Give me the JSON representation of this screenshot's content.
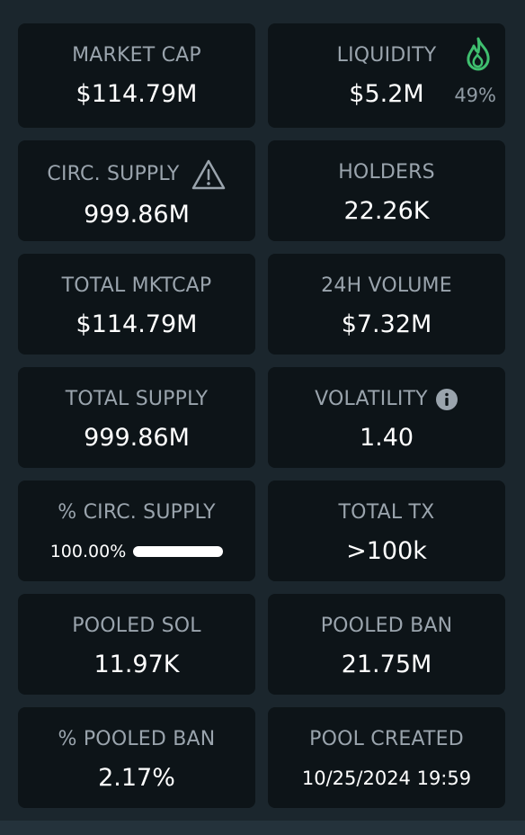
{
  "cards": [
    {
      "label": "MARKET CAP",
      "value": "$114.79M"
    },
    {
      "label": "LIQUIDITY",
      "value": "$5.2M",
      "note": "49%"
    },
    {
      "label": "CIRC. SUPPLY",
      "value": "999.86M"
    },
    {
      "label": "HOLDERS",
      "value": "22.26K"
    },
    {
      "label": "TOTAL MKTCAP",
      "value": "$114.79M"
    },
    {
      "label": "24H VOLUME",
      "value": "$7.32M"
    },
    {
      "label": "TOTAL SUPPLY",
      "value": "999.86M"
    },
    {
      "label": "VOLATILITY",
      "value": "1.40"
    },
    {
      "label": "% CIRC. SUPPLY",
      "value": "100.00%"
    },
    {
      "label": "TOTAL TX",
      "value": ">100k"
    },
    {
      "label": "POOLED SOL",
      "value": "11.97K"
    },
    {
      "label": "POOLED BAN",
      "value": "21.75M"
    },
    {
      "label": "% POOLED BAN",
      "value": "2.17%"
    },
    {
      "label": "POOL CREATED",
      "value": "10/25/2024 19:59"
    }
  ]
}
